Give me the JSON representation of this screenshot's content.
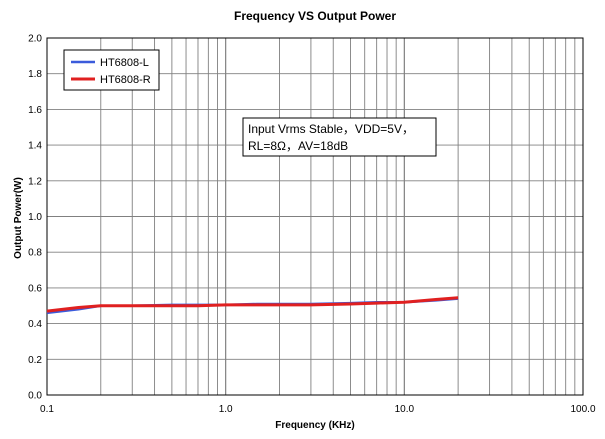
{
  "chart_data": {
    "type": "line",
    "title": "Frequency VS Output Power",
    "xlabel": "Frequency (KHz)",
    "ylabel": "Output Power(W)",
    "x_scale": "log",
    "xlim": [
      0.1,
      100.0
    ],
    "ylim": [
      0.0,
      2.0
    ],
    "x_ticks": [
      0.1,
      1.0,
      10.0,
      100.0
    ],
    "x_tick_labels": [
      "0.1",
      "1.0",
      "10.0",
      "100.0"
    ],
    "y_ticks": [
      0.0,
      0.2,
      0.4,
      0.6,
      0.8,
      1.0,
      1.2,
      1.4,
      1.6,
      1.8,
      2.0
    ],
    "y_tick_labels": [
      "0.0",
      "0.2",
      "0.4",
      "0.6",
      "0.8",
      "1.0",
      "1.2",
      "1.4",
      "1.6",
      "1.8",
      "2.0"
    ],
    "grid": true,
    "legend_position": "top-left",
    "series": [
      {
        "name": "HT6808-L",
        "color": "#3b5bdb",
        "x": [
          0.1,
          0.15,
          0.2,
          0.3,
          0.5,
          0.7,
          1.0,
          1.5,
          2.0,
          3.0,
          5.0,
          7.0,
          10.0,
          15.0,
          20.0
        ],
        "y": [
          0.46,
          0.48,
          0.5,
          0.5,
          0.505,
          0.505,
          0.505,
          0.51,
          0.51,
          0.51,
          0.515,
          0.52,
          0.52,
          0.53,
          0.54
        ]
      },
      {
        "name": "HT6808-R",
        "color": "#e02020",
        "x": [
          0.1,
          0.15,
          0.2,
          0.3,
          0.5,
          0.7,
          1.0,
          1.5,
          2.0,
          3.0,
          5.0,
          7.0,
          10.0,
          15.0,
          20.0
        ],
        "y": [
          0.47,
          0.49,
          0.5,
          0.5,
          0.5,
          0.5,
          0.505,
          0.505,
          0.505,
          0.505,
          0.51,
          0.515,
          0.52,
          0.535,
          0.545
        ]
      }
    ],
    "annotation": {
      "line1": "Input Vrms Stable，VDD=5V，",
      "line2": "RL=8Ω，AV=18dB"
    }
  }
}
